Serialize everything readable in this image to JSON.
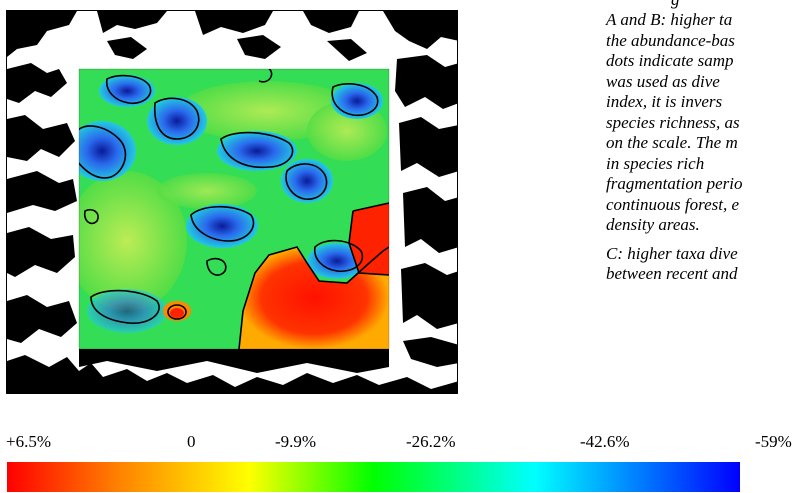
{
  "caption": {
    "line_top": "g",
    "paragraph_ab": "A and B: higher taxa diversity in the abundance-based ... dots indicate samp... was used as diversity index, it is inversely related to species richness, as shown on the scale. The main... in species richness... fragmentation period... continuous forest, e... density areas.",
    "paragraph_ab_lines": [
      "A and B: higher ta",
      "the abundance-bas",
      "dots indicate samp",
      "was used as dive",
      "index, it is invers",
      "species richness, as",
      "on the scale. The m",
      "in   species   rich",
      "fragmentation perio",
      "continuous forest, e",
      "density areas."
    ],
    "paragraph_c_lines": [
      "C: higher taxa dive",
      "between recent and"
    ]
  },
  "scale": {
    "labels": [
      "+6.5%",
      "0",
      "-9.9%",
      "-26.2%",
      "-42.6%",
      "-59%"
    ],
    "gradient_colors": [
      "#ff0000",
      "#ff8000",
      "#ffff00",
      "#00ff00",
      "#00ffff",
      "#0000ff"
    ]
  },
  "map": {
    "colors": {
      "forest_black": "#000000",
      "low_diversity_red": "#ff2200",
      "green": "#22dd44",
      "yellow_green": "#aaee44",
      "cyan": "#22ccdd",
      "blue": "#2255ee",
      "dark_blue": "#1122aa"
    }
  }
}
